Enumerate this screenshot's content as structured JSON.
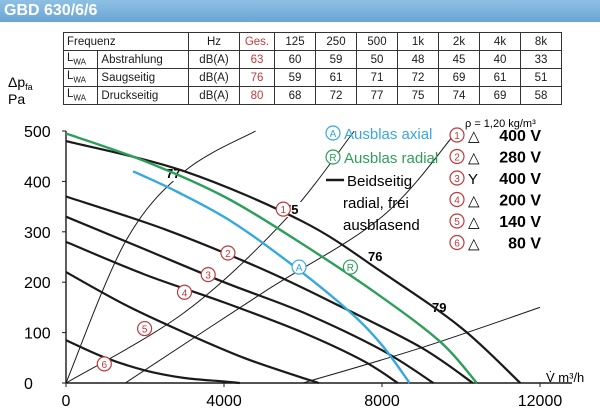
{
  "title": "GBD 630/6/6",
  "noise_table": {
    "header": [
      "Frequenz",
      "Hz",
      "Ges.",
      "125",
      "250",
      "500",
      "1k",
      "2k",
      "4k",
      "8k"
    ],
    "rows": [
      {
        "lwa": "L",
        "sub": "WA",
        "label": "Abstrahlung",
        "unit": "dB(A)",
        "values": [
          "63",
          "60",
          "59",
          "50",
          "48",
          "45",
          "40",
          "33"
        ]
      },
      {
        "lwa": "L",
        "sub": "WA",
        "label": "Saugseitig",
        "unit": "dB(A)",
        "values": [
          "76",
          "59",
          "61",
          "71",
          "72",
          "69",
          "61",
          "51"
        ]
      },
      {
        "lwa": "L",
        "sub": "WA",
        "label": "Druckseitig",
        "unit": "dB(A)",
        "values": [
          "80",
          "68",
          "72",
          "77",
          "75",
          "74",
          "69",
          "58"
        ]
      }
    ]
  },
  "chart_data": {
    "type": "line",
    "ylabel": "Δp",
    "ylabel_sub": "fa",
    "yunit": "Pa",
    "xlabel": "V̇ m³/h",
    "density_note": "ρ = 1,20 kg/m³",
    "xlim": [
      0,
      12000
    ],
    "ylim": [
      0,
      500
    ],
    "xticks": [
      0,
      4000,
      8000,
      12000
    ],
    "yticks": [
      0,
      100,
      200,
      300,
      400,
      500
    ],
    "grid": false,
    "colors": {
      "axial": "#37a8dc",
      "radial": "#2e9e5b",
      "both": "#1a1a1a",
      "marker": "#c0393b",
      "header": "#6aa5d4"
    },
    "legend": {
      "axial": {
        "mark": "A",
        "label": "Ausblas axial"
      },
      "radial": {
        "mark": "R",
        "label": "Ausblas radial"
      },
      "both": [
        "Beidseitig",
        "radial, frei",
        "ausblasend"
      ]
    },
    "voltage_legend": [
      {
        "num": "1",
        "sym": "△",
        "label": "400 V"
      },
      {
        "num": "2",
        "sym": "△",
        "label": "280 V"
      },
      {
        "num": "3",
        "sym": "Y",
        "label": "400 V"
      },
      {
        "num": "4",
        "sym": "△",
        "label": "200 V"
      },
      {
        "num": "5",
        "sym": "△",
        "label": "140 V"
      },
      {
        "num": "6",
        "sym": "△",
        "label": "80 V"
      }
    ],
    "series": [
      {
        "key": "s1",
        "kind": "both",
        "x": [
          0,
          3000,
          6000,
          8000,
          10000,
          11500
        ],
        "y": [
          480,
          420,
          320,
          220,
          110,
          0
        ]
      },
      {
        "key": "s2",
        "kind": "both",
        "x": [
          0,
          2500,
          5000,
          7000,
          9000,
          10300
        ],
        "y": [
          370,
          305,
          225,
          150,
          70,
          0
        ]
      },
      {
        "key": "s3",
        "kind": "both",
        "x": [
          0,
          2000,
          4000,
          6000,
          8000,
          9300
        ],
        "y": [
          330,
          265,
          200,
          140,
          65,
          0
        ]
      },
      {
        "key": "s4",
        "kind": "both",
        "x": [
          0,
          2000,
          4000,
          6000,
          7500,
          8400
        ],
        "y": [
          280,
          215,
          160,
          100,
          45,
          0
        ]
      },
      {
        "key": "s5",
        "kind": "both",
        "x": [
          0,
          1500,
          3000,
          4500,
          5800,
          6400
        ],
        "y": [
          220,
          155,
          100,
          50,
          15,
          0
        ]
      },
      {
        "key": "s6",
        "kind": "both",
        "x": [
          0,
          1000,
          2000,
          3000,
          4000,
          4400
        ],
        "y": [
          85,
          50,
          25,
          10,
          3,
          0
        ]
      },
      {
        "key": "ax",
        "kind": "axial",
        "x": [
          1700,
          2800,
          4200,
          5800,
          7200,
          8000,
          8700
        ],
        "y": [
          420,
          380,
          320,
          230,
          140,
          75,
          0
        ]
      },
      {
        "key": "rad",
        "kind": "radial",
        "x": [
          0,
          2000,
          4000,
          6000,
          8000,
          9500,
          10400
        ],
        "y": [
          495,
          440,
          370,
          275,
          170,
          80,
          0
        ]
      }
    ],
    "efficiency_lines": [
      {
        "label": "77",
        "x": [
          0,
          1500,
          3000,
          4800
        ],
        "y": [
          0,
          280,
          420,
          500
        ]
      },
      {
        "label": "75",
        "x": [
          0,
          3000,
          5500,
          7300
        ],
        "y": [
          0,
          140,
          320,
          500
        ]
      },
      {
        "label": "76",
        "x": [
          1500,
          5000,
          8000,
          9900
        ],
        "y": [
          0,
          180,
          330,
          500
        ]
      },
      {
        "label": "79",
        "x": [
          6000,
          9000,
          12000
        ],
        "y": [
          0,
          70,
          150
        ]
      }
    ],
    "marker_labels": [
      {
        "num": "1",
        "x": 5500,
        "y": 345
      },
      {
        "num": "2",
        "x": 4100,
        "y": 258
      },
      {
        "num": "3",
        "x": 3600,
        "y": 215
      },
      {
        "num": "4",
        "x": 3000,
        "y": 180
      },
      {
        "num": "5",
        "x": 1990,
        "y": 108
      },
      {
        "num": "6",
        "x": 970,
        "y": 38
      },
      {
        "num": "A",
        "x": 5900,
        "y": 230
      },
      {
        "num": "R",
        "x": 7200,
        "y": 230
      }
    ]
  }
}
